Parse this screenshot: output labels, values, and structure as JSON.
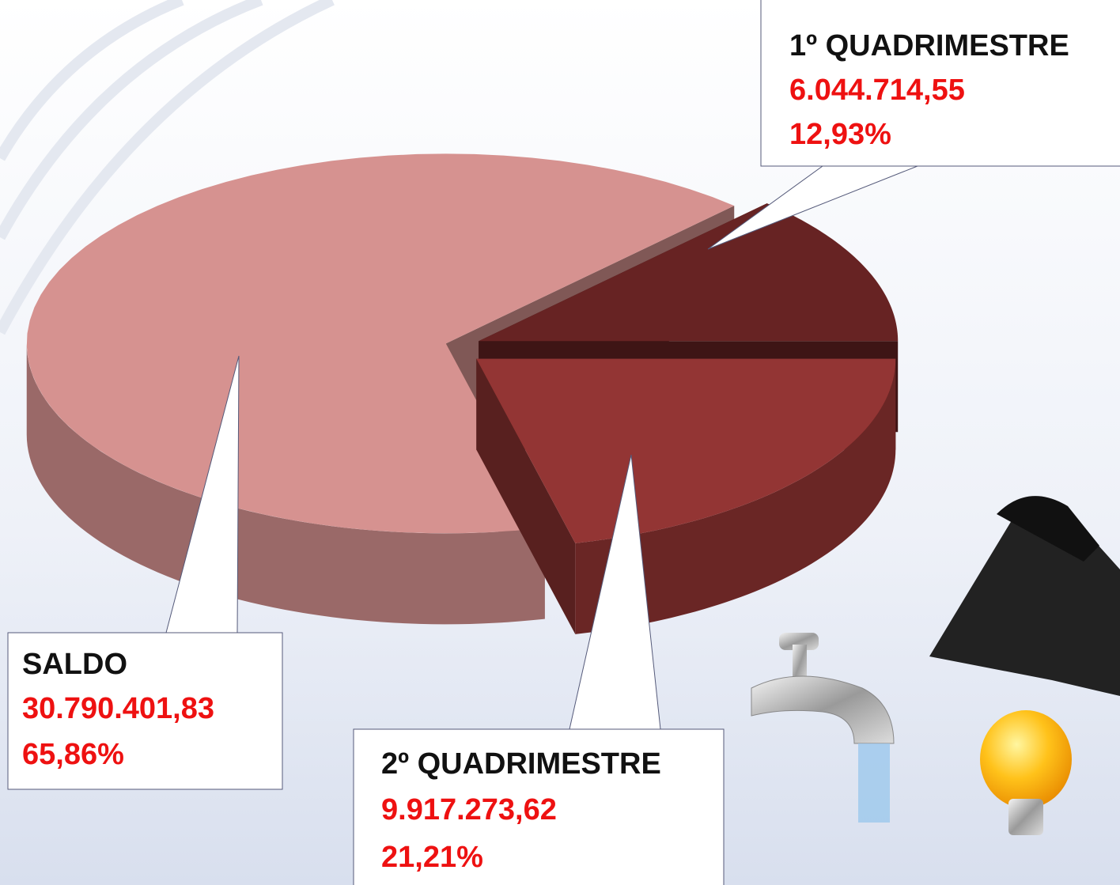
{
  "chart_data": {
    "type": "pie",
    "categories": [
      "SALDO",
      "1º QUADRIMESTRE",
      "2º QUADRIMESTRE"
    ],
    "values": [
      65.86,
      12.93,
      21.21
    ],
    "value_labels": [
      "65,86%",
      "12,93%",
      "21,21%"
    ],
    "amount_labels": [
      "30.790.401,83",
      "6.044.714,55",
      "9.917.273,62"
    ],
    "colors": [
      "#d69290",
      "#672323",
      "#933534"
    ]
  }
}
